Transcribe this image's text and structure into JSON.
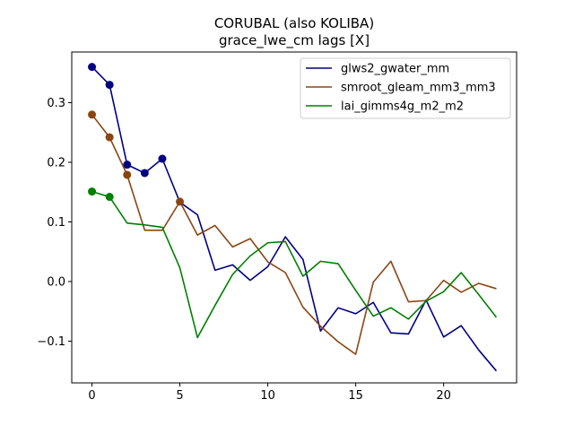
{
  "chart_data": {
    "type": "line",
    "title": "CORUBAL (also KOLIBA)",
    "subtitle": "grace_lwe_cm lags [X]",
    "xlabel": "",
    "ylabel": "",
    "xlim": [
      -1.15,
      24.15
    ],
    "ylim": [
      -0.17,
      0.385
    ],
    "xticks": [
      0,
      5,
      10,
      15,
      20
    ],
    "xtick_labels": [
      "0",
      "5",
      "10",
      "15",
      "20"
    ],
    "yticks": [
      -0.1,
      0.0,
      0.1,
      0.2,
      0.3
    ],
    "ytick_labels": [
      "−0.1",
      "0.0",
      "0.1",
      "0.2",
      "0.3"
    ],
    "grid": false,
    "legend_position": "top-right",
    "x": [
      0,
      1,
      2,
      3,
      4,
      5,
      6,
      7,
      8,
      9,
      10,
      11,
      12,
      13,
      14,
      15,
      16,
      17,
      18,
      19,
      20,
      21,
      22,
      23
    ],
    "series": [
      {
        "name": "glws2_gwater_mm",
        "color": "#000080",
        "values": [
          0.36,
          0.33,
          0.196,
          0.182,
          0.206,
          0.133,
          0.112,
          0.019,
          0.028,
          0.002,
          0.025,
          0.075,
          0.037,
          -0.083,
          -0.044,
          -0.054,
          -0.035,
          -0.086,
          -0.088,
          -0.031,
          -0.093,
          -0.074,
          -0.115,
          -0.15
        ],
        "marked_points": [
          0,
          1,
          2,
          3,
          4
        ]
      },
      {
        "name": "smroot_gleam_mm3_mm3",
        "color": "#8b4513",
        "values": [
          0.28,
          0.242,
          0.179,
          0.086,
          0.086,
          0.134,
          0.078,
          0.094,
          0.058,
          0.072,
          0.033,
          0.015,
          -0.043,
          -0.075,
          -0.101,
          -0.122,
          -0.001,
          0.034,
          -0.034,
          -0.032,
          0.002,
          -0.018,
          -0.003,
          -0.012
        ],
        "marked_points": [
          0,
          1,
          2,
          5
        ]
      },
      {
        "name": "lai_gimms4g_m2_m2",
        "color": "#008000",
        "values": [
          0.151,
          0.142,
          0.098,
          0.095,
          0.091,
          0.023,
          -0.094,
          -0.04,
          0.012,
          0.043,
          0.065,
          0.067,
          0.009,
          0.034,
          0.03,
          -0.015,
          -0.058,
          -0.044,
          -0.063,
          -0.033,
          -0.017,
          0.015,
          -0.022,
          -0.06
        ],
        "marked_points": [
          0,
          1
        ]
      }
    ]
  }
}
